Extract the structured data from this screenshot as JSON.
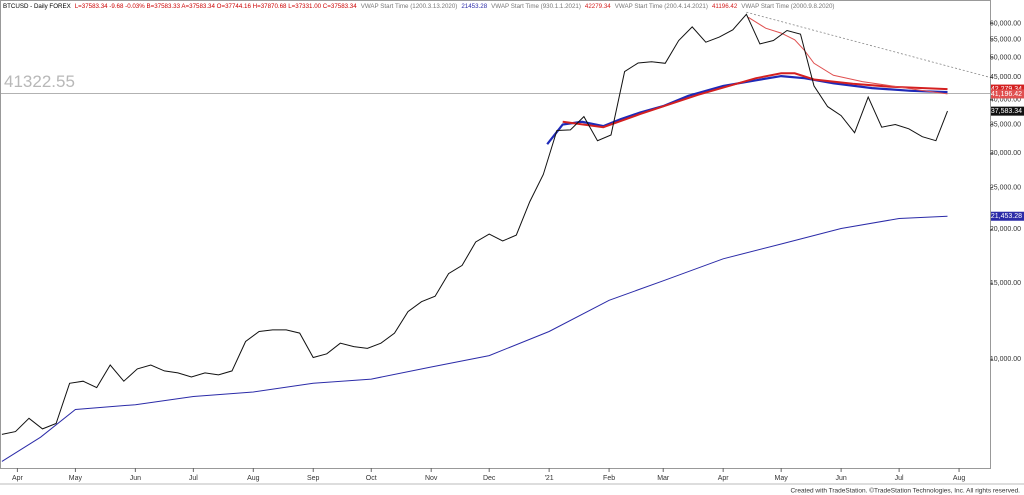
{
  "chart_data": {
    "type": "line",
    "header": [
      {
        "text": "BTCUSD - Daily FOREX",
        "color": "#000000"
      },
      {
        "text": "L=37583.34 -9.68 -0.03% B=37583.33 A=37583.34 O=37744.16 H=37870.68 L=37331.00 C=37583.34",
        "color": "#cc0000"
      },
      {
        "text": "VWAP Start Time (1200.3.13.2020)",
        "color": "#777777"
      },
      {
        "text": "21453.28",
        "color": "#2b2ba8"
      },
      {
        "text": "VWAP Start Time (930.1.1.2021)",
        "color": "#777777"
      },
      {
        "text": "42279.34",
        "color": "#d42020"
      },
      {
        "text": "VWAP Start Time (200.4.14.2021)",
        "color": "#777777"
      },
      {
        "text": "41196.42",
        "color": "#d42020"
      },
      {
        "text": "VWAP Start Time (2000.9.8.2020)",
        "color": "#777777"
      }
    ],
    "footer": "Created with TradeStation. ©TradeStation Technologies, Inc. All rights reserved.",
    "log_scale": true,
    "xlim": [
      -1,
      511
    ],
    "ylim": [
      5600,
      68000
    ],
    "xticks": [
      {
        "value": 8,
        "label": "Apr"
      },
      {
        "value": 38,
        "label": "May"
      },
      {
        "value": 69,
        "label": "Jun"
      },
      {
        "value": 99,
        "label": "Jul"
      },
      {
        "value": 130,
        "label": "Aug"
      },
      {
        "value": 161,
        "label": "Sep"
      },
      {
        "value": 191,
        "label": "Oct"
      },
      {
        "value": 222,
        "label": "Nov"
      },
      {
        "value": 252,
        "label": "Dec"
      },
      {
        "value": 283,
        "label": "'21"
      },
      {
        "value": 314,
        "label": "Feb"
      },
      {
        "value": 342,
        "label": "Mar"
      },
      {
        "value": 373,
        "label": "Apr"
      },
      {
        "value": 403,
        "label": "May"
      },
      {
        "value": 434,
        "label": "Jun"
      },
      {
        "value": 464,
        "label": "Jul"
      },
      {
        "value": 495,
        "label": "Aug"
      }
    ],
    "yticks": [
      {
        "value": 60000,
        "label": "60,000.00"
      },
      {
        "value": 55000,
        "label": "55,000.00"
      },
      {
        "value": 50000,
        "label": "50,000.00"
      },
      {
        "value": 45000,
        "label": "45,000.00"
      },
      {
        "value": 40000,
        "label": "40,000.00"
      },
      {
        "value": 35000,
        "label": "35,000.00"
      },
      {
        "value": 30000,
        "label": "30,000.00"
      },
      {
        "value": 25000,
        "label": "25,000.00"
      },
      {
        "value": 20000,
        "label": "20,000.00"
      },
      {
        "value": 15000,
        "label": "15,000.00"
      },
      {
        "value": 10000,
        "label": "10,000.00"
      }
    ],
    "hline": {
      "value": 41322.55,
      "color": "#999999"
    },
    "trendline": {
      "x": [
        385,
        511
      ],
      "values": [
        63700,
        45000
      ],
      "color": "#888888"
    },
    "series": [
      {
        "color": "#2b2ba8",
        "width": 1,
        "end_label": "21,453.28",
        "x": [
          0,
          20,
          38,
          69,
          99,
          130,
          161,
          191,
          222,
          252,
          283,
          314,
          342,
          373,
          403,
          434,
          464,
          489
        ],
        "values": [
          5800,
          6600,
          7650,
          7850,
          8200,
          8400,
          8800,
          9000,
          9600,
          10200,
          11600,
          13700,
          15200,
          17100,
          18500,
          20100,
          21200,
          21453.28
        ]
      },
      {
        "color": "#1e2ab8",
        "width": 2.2,
        "x": [
          282,
          290,
          300,
          311,
          320,
          330,
          342,
          355,
          373,
          390,
          403,
          415,
          430,
          450,
          470,
          489
        ],
        "values": [
          31500,
          35000,
          35500,
          34700,
          36000,
          37300,
          38600,
          40800,
          43000,
          44300,
          45300,
          44800,
          43600,
          42500,
          41900,
          41600
        ]
      },
      {
        "color": "#d42020",
        "width": 2,
        "end_label": "42,279.34",
        "x": [
          290,
          311,
          330,
          360,
          390,
          403,
          410,
          420,
          440,
          460,
          489
        ],
        "values": [
          35500,
          34500,
          37000,
          41000,
          44800,
          46000,
          46000,
          44500,
          43500,
          42800,
          42279.34
        ]
      },
      {
        "color": "#e05050",
        "width": 1,
        "end_label": "41,196.42",
        "x": [
          386,
          395,
          403,
          410,
          415,
          420,
          430,
          445,
          460,
          475,
          489
        ],
        "values": [
          62000,
          58500,
          57000,
          55000,
          52000,
          48500,
          45500,
          44000,
          43000,
          42000,
          41196.42
        ]
      },
      {
        "color": "#111111",
        "width": 1,
        "end_label": "37,583.34",
        "x": [
          0,
          7,
          14,
          21,
          28,
          35,
          42,
          49,
          56,
          63,
          70,
          77,
          84,
          91,
          98,
          105,
          112,
          119,
          126,
          133,
          140,
          147,
          154,
          161,
          168,
          175,
          182,
          189,
          196,
          203,
          210,
          217,
          224,
          231,
          238,
          245,
          252,
          259,
          266,
          273,
          280,
          287,
          294,
          301,
          308,
          315,
          322,
          329,
          336,
          343,
          350,
          357,
          364,
          371,
          378,
          385,
          392,
          399,
          406,
          413,
          420,
          427,
          434,
          441,
          448,
          455,
          462,
          469,
          476,
          483,
          489
        ],
        "values": [
          6700,
          6800,
          7300,
          6900,
          7100,
          8800,
          8900,
          8600,
          9700,
          8900,
          9500,
          9700,
          9400,
          9300,
          9100,
          9300,
          9200,
          9400,
          11000,
          11600,
          11700,
          11700,
          11500,
          10100,
          10300,
          10900,
          10700,
          10600,
          10900,
          11500,
          12900,
          13600,
          14000,
          15800,
          16500,
          18700,
          19500,
          18800,
          19400,
          23200,
          26800,
          33900,
          34000,
          36500,
          32100,
          33100,
          46400,
          48600,
          48900,
          48500,
          54800,
          58900,
          54300,
          55800,
          58000,
          63000,
          53800,
          54800,
          57800,
          56700,
          43000,
          38500,
          36700,
          33500,
          40500,
          34500,
          35000,
          34200,
          32800,
          32100,
          37583.34
        ]
      }
    ]
  }
}
